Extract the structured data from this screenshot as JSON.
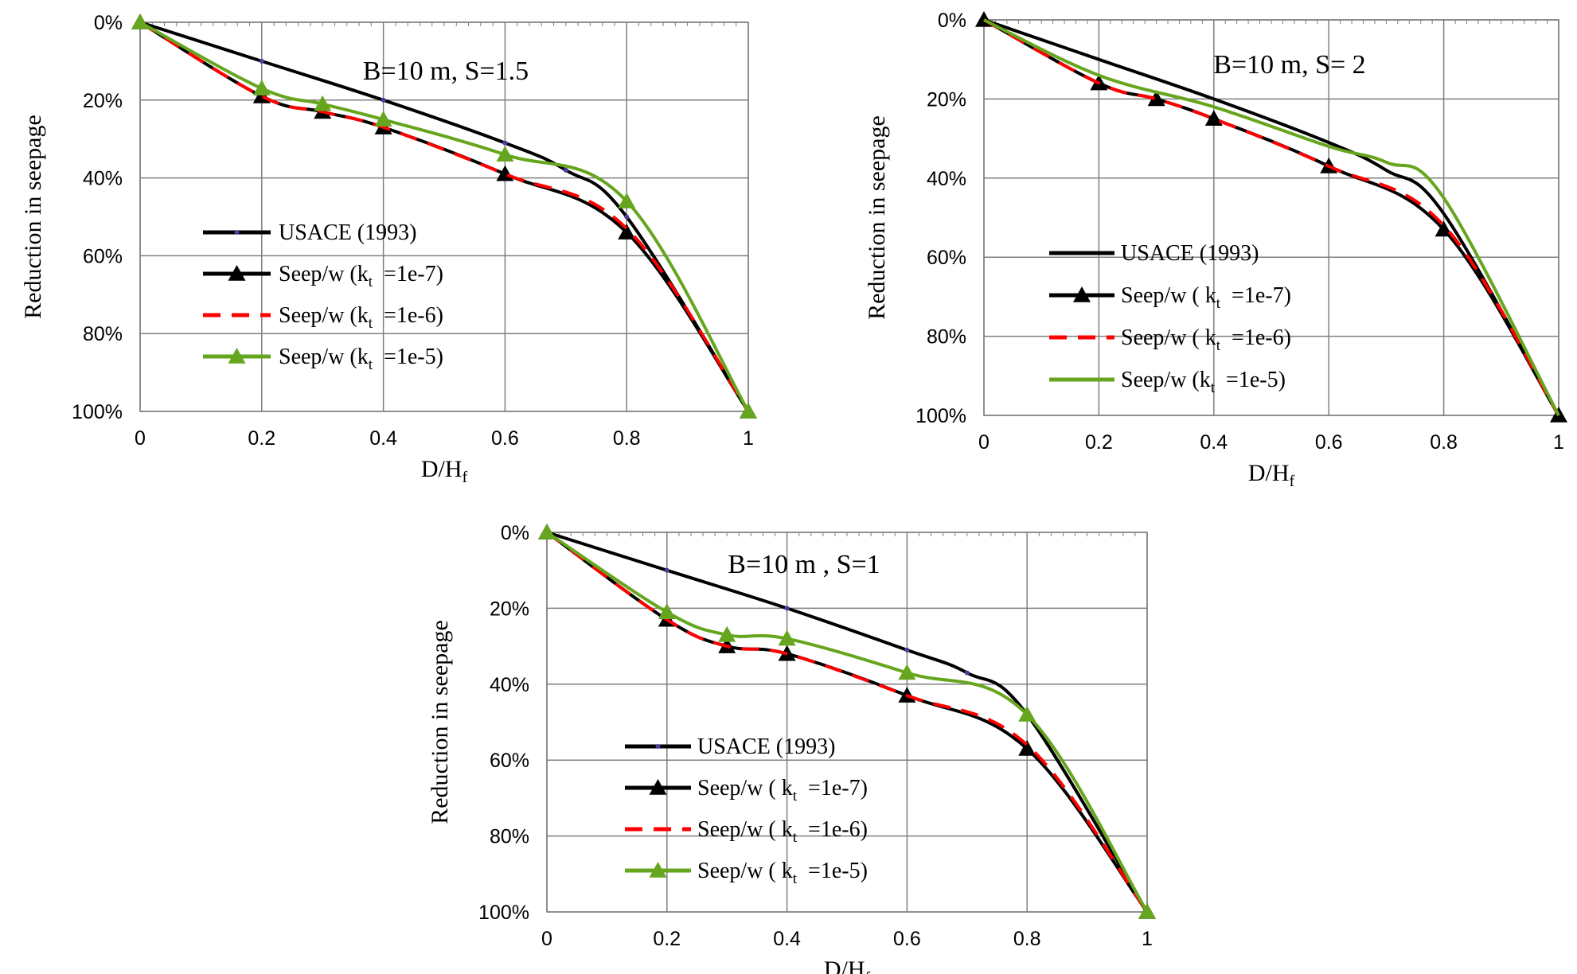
{
  "colors": {
    "usace": "#000000",
    "k7": "#000000",
    "k6": "#ff0000",
    "k5": "#66a61e",
    "grid": "#7f7f7f",
    "usace_marker": "#4b3c9e"
  },
  "chart_data": [
    {
      "type": "line",
      "title": "B=10 m, S=1.5",
      "xlabel_main": "D/H",
      "xlabel_sub": "f",
      "ylabel": "Reduction in seepage",
      "xlim": [
        0,
        1
      ],
      "ylim": [
        0,
        100
      ],
      "y_inverted": true,
      "x_ticks": [
        "0",
        "0.2",
        "0.4",
        "0.6",
        "0.8",
        "1"
      ],
      "y_ticks": [
        "0%",
        "20%",
        "40%",
        "60%",
        "80%",
        "100%"
      ],
      "grid": true,
      "legend_position": "left-middle",
      "series": [
        {
          "name": "USACE (1993)",
          "legend_prefix": "USACE (1993)",
          "legend_sub": "",
          "legend_value": "",
          "color_key": "usace",
          "dashed": false,
          "marker": "dot",
          "x": [
            0,
            0.2,
            0.4,
            0.6,
            0.7,
            0.8,
            1.0
          ],
          "y": [
            0,
            10,
            20,
            31,
            38,
            50,
            100
          ]
        },
        {
          "name": "Seep/w (kt =1e-7)",
          "legend_prefix": "Seep/w (k",
          "legend_sub": "t",
          "legend_value": "=1e-7)",
          "color_key": "k7",
          "dashed": false,
          "marker": "triangle",
          "x": [
            0,
            0.2,
            0.3,
            0.4,
            0.6,
            0.8,
            1.0
          ],
          "y": [
            0,
            19,
            23,
            27,
            39,
            54,
            100
          ]
        },
        {
          "name": "Seep/w (kt =1e-6)",
          "legend_prefix": "Seep/w (k",
          "legend_sub": "t",
          "legend_value": "=1e-6)",
          "color_key": "k6",
          "dashed": true,
          "marker": "none",
          "x": [
            0,
            0.2,
            0.3,
            0.4,
            0.6,
            0.8,
            1.0
          ],
          "y": [
            0,
            19,
            23,
            27,
            39,
            53,
            100
          ]
        },
        {
          "name": "Seep/w (kt =1e-5)",
          "legend_prefix": "Seep/w (k",
          "legend_sub": "t",
          "legend_value": "=1e-5)",
          "color_key": "k5",
          "dashed": false,
          "marker": "triangle",
          "x": [
            0,
            0.2,
            0.3,
            0.4,
            0.6,
            0.8,
            1.0
          ],
          "y": [
            0,
            17,
            21,
            25,
            34,
            46,
            100
          ]
        }
      ]
    },
    {
      "type": "line",
      "title": "B=10 m, S= 2",
      "xlabel_main": "D/H",
      "xlabel_sub": "f",
      "ylabel": "Reduction in seepage",
      "xlim": [
        0,
        1
      ],
      "ylim": [
        0,
        100
      ],
      "y_inverted": true,
      "x_ticks": [
        "0",
        "0.2",
        "0.4",
        "0.6",
        "0.8",
        "1"
      ],
      "y_ticks": [
        "0%",
        "20%",
        "40%",
        "60%",
        "80%",
        "100%"
      ],
      "grid": true,
      "legend_position": "left-middle",
      "series": [
        {
          "name": "USACE (1993)",
          "legend_prefix": "USACE (1993)",
          "legend_sub": "",
          "legend_value": "",
          "color_key": "usace",
          "dashed": false,
          "marker": "none",
          "x": [
            0,
            0.2,
            0.4,
            0.6,
            0.7,
            0.8,
            1.0
          ],
          "y": [
            0,
            10,
            20,
            31,
            38,
            49,
            100
          ]
        },
        {
          "name": "Seep/w ( kt =1e-7)",
          "legend_prefix": "Seep/w ( k",
          "legend_sub": "t",
          "legend_value": "=1e-7)",
          "color_key": "k7",
          "dashed": false,
          "marker": "triangle",
          "x": [
            0,
            0.2,
            0.3,
            0.4,
            0.6,
            0.8,
            1.0
          ],
          "y": [
            0,
            16,
            20,
            25,
            37,
            53,
            100
          ]
        },
        {
          "name": "Seep/w ( kt =1e-6)",
          "legend_prefix": "Seep/w ( k",
          "legend_sub": "t",
          "legend_value": "=1e-6)",
          "color_key": "k6",
          "dashed": true,
          "marker": "none",
          "x": [
            0,
            0.2,
            0.3,
            0.4,
            0.6,
            0.8,
            1.0
          ],
          "y": [
            0,
            16,
            20,
            25,
            37,
            52,
            100
          ]
        },
        {
          "name": "Seep/w (kt =1e-5)",
          "legend_prefix": "Seep/w (k",
          "legend_sub": "t",
          "legend_value": "=1e-5)",
          "color_key": "k5",
          "dashed": false,
          "marker": "none",
          "x": [
            0,
            0.2,
            0.4,
            0.6,
            0.7,
            0.8,
            1.0
          ],
          "y": [
            0,
            14,
            22,
            32,
            36,
            45,
            100
          ]
        }
      ]
    },
    {
      "type": "line",
      "title": "B=10 m , S=1",
      "xlabel_main": "D/H",
      "xlabel_sub": "f",
      "ylabel": "Reduction in seepage",
      "xlim": [
        0,
        1
      ],
      "ylim": [
        0,
        100
      ],
      "y_inverted": true,
      "x_ticks": [
        "0",
        "0.2",
        "0.4",
        "0.6",
        "0.8",
        "1"
      ],
      "y_ticks": [
        "0%",
        "20%",
        "40%",
        "60%",
        "80%",
        "100%"
      ],
      "grid": true,
      "legend_position": "left-middle",
      "series": [
        {
          "name": "USACE (1993)",
          "legend_prefix": "USACE (1993)",
          "legend_sub": "",
          "legend_value": "",
          "color_key": "usace",
          "dashed": false,
          "marker": "dot",
          "x": [
            0,
            0.2,
            0.4,
            0.6,
            0.7,
            0.8,
            1.0
          ],
          "y": [
            0,
            10,
            20,
            31,
            37,
            48,
            100
          ]
        },
        {
          "name": "Seep/w ( kt =1e-7)",
          "legend_prefix": "Seep/w ( k",
          "legend_sub": "t",
          "legend_value": "=1e-7)",
          "color_key": "k7",
          "dashed": false,
          "marker": "triangle",
          "x": [
            0,
            0.2,
            0.3,
            0.4,
            0.6,
            0.8,
            1.0
          ],
          "y": [
            0,
            23,
            30,
            32,
            43,
            57,
            100
          ]
        },
        {
          "name": "Seep/w ( kt =1e-6)",
          "legend_prefix": "Seep/w ( k",
          "legend_sub": "t",
          "legend_value": "=1e-6)",
          "color_key": "k6",
          "dashed": true,
          "marker": "none",
          "x": [
            0,
            0.2,
            0.3,
            0.4,
            0.6,
            0.8,
            1.0
          ],
          "y": [
            0,
            23,
            30,
            32,
            43,
            56,
            100
          ]
        },
        {
          "name": "Seep/w ( kt =1e-5)",
          "legend_prefix": "Seep/w ( k",
          "legend_sub": "t",
          "legend_value": "=1e-5)",
          "color_key": "k5",
          "dashed": false,
          "marker": "triangle",
          "x": [
            0,
            0.2,
            0.3,
            0.4,
            0.6,
            0.8,
            1.0
          ],
          "y": [
            0,
            21,
            27,
            28,
            37,
            48,
            100
          ]
        }
      ]
    }
  ]
}
